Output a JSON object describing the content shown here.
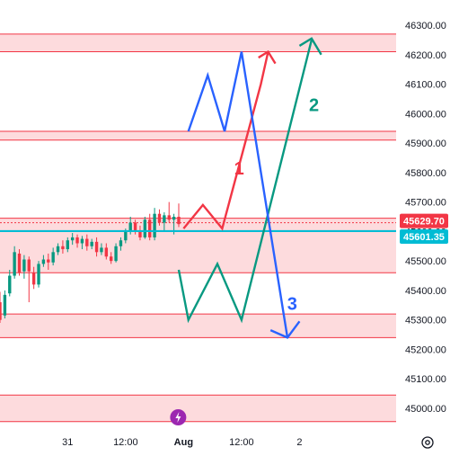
{
  "chart_data": {
    "type": "candlestick",
    "title": "",
    "price_axis": {
      "ticks": [
        45000,
        45100,
        45200,
        45300,
        45400,
        45500,
        45600,
        45700,
        45800,
        45900,
        46000,
        46100,
        46200,
        46300
      ],
      "tick_labels": [
        "45000.00",
        "45100.00",
        "45200.00",
        "45300.00",
        "45400.00",
        "45500.00",
        "45600.00",
        "45700.00",
        "45800.00",
        "45900.00",
        "46000.00",
        "46100.00",
        "46200.00",
        "46300.00"
      ],
      "range": [
        44960,
        46340
      ]
    },
    "time_axis": {
      "labels": [
        "31",
        "12:00",
        "Aug",
        "12:00",
        "2"
      ],
      "bold_label": "Aug",
      "range_hours": [
        -38,
        44
      ],
      "label_hours": [
        -24,
        -12,
        0,
        12,
        24
      ]
    },
    "price_tags": [
      {
        "label": "45629.70",
        "value": 45629.7,
        "color": "#f23645"
      },
      {
        "label": "45601.35",
        "value": 45601.35,
        "color": "#00bcd4"
      }
    ],
    "horizontal_line": {
      "value": 45601.35,
      "color": "#00bcd4"
    },
    "zones": [
      {
        "from": 46210,
        "to": 46270
      },
      {
        "from": 45910,
        "to": 45940
      },
      {
        "from": 45460,
        "to": 45645
      },
      {
        "from": 45240,
        "to": 45320
      },
      {
        "from": 44955,
        "to": 45045
      }
    ],
    "candles": [
      {
        "t": -38.0,
        "o": 45360,
        "h": 45395,
        "c": 45300,
        "l": 45290
      },
      {
        "t": -37.0,
        "o": 45315,
        "h": 45400,
        "c": 45385,
        "l": 45305
      },
      {
        "t": -36.0,
        "o": 45390,
        "h": 45470,
        "c": 45450,
        "l": 45380
      },
      {
        "t": -35.0,
        "o": 45450,
        "h": 45550,
        "c": 45530,
        "l": 45440
      },
      {
        "t": -34.0,
        "o": 45525,
        "h": 45540,
        "c": 45460,
        "l": 45450
      },
      {
        "t": -33.0,
        "o": 45465,
        "h": 45520,
        "c": 45505,
        "l": 45440
      },
      {
        "t": -32.0,
        "o": 45505,
        "h": 45515,
        "c": 45465,
        "l": 45360
      },
      {
        "t": -31.0,
        "o": 45460,
        "h": 45480,
        "c": 45420,
        "l": 45405
      },
      {
        "t": -30.0,
        "o": 45420,
        "h": 45500,
        "c": 45490,
        "l": 45410
      },
      {
        "t": -29.0,
        "o": 45490,
        "h": 45520,
        "c": 45505,
        "l": 45480
      },
      {
        "t": -28.0,
        "o": 45505,
        "h": 45525,
        "c": 45495,
        "l": 45470
      },
      {
        "t": -27.0,
        "o": 45495,
        "h": 45545,
        "c": 45530,
        "l": 45485
      },
      {
        "t": -26.0,
        "o": 45530,
        "h": 45560,
        "c": 45550,
        "l": 45520
      },
      {
        "t": -25.0,
        "o": 45550,
        "h": 45570,
        "c": 45540,
        "l": 45525
      },
      {
        "t": -24.0,
        "o": 45540,
        "h": 45580,
        "c": 45570,
        "l": 45530
      },
      {
        "t": -23.0,
        "o": 45570,
        "h": 45595,
        "c": 45580,
        "l": 45555
      },
      {
        "t": -22.0,
        "o": 45580,
        "h": 45590,
        "c": 45560,
        "l": 45545
      },
      {
        "t": -21.0,
        "o": 45560,
        "h": 45585,
        "c": 45575,
        "l": 45540
      },
      {
        "t": -20.0,
        "o": 45575,
        "h": 45590,
        "c": 45550,
        "l": 45535
      },
      {
        "t": -19.0,
        "o": 45550,
        "h": 45575,
        "c": 45565,
        "l": 45540
      },
      {
        "t": -18.0,
        "o": 45565,
        "h": 45580,
        "c": 45530,
        "l": 45515
      },
      {
        "t": -17.0,
        "o": 45530,
        "h": 45560,
        "c": 45545,
        "l": 45520
      },
      {
        "t": -16.0,
        "o": 45545,
        "h": 45560,
        "c": 45515,
        "l": 45505
      },
      {
        "t": -15.0,
        "o": 45515,
        "h": 45530,
        "c": 45500,
        "l": 45490
      },
      {
        "t": -14.0,
        "o": 45500,
        "h": 45560,
        "c": 45550,
        "l": 45495
      },
      {
        "t": -13.0,
        "o": 45550,
        "h": 45580,
        "c": 45570,
        "l": 45535
      },
      {
        "t": -12.0,
        "o": 45570,
        "h": 45610,
        "c": 45600,
        "l": 45560
      },
      {
        "t": -11.0,
        "o": 45600,
        "h": 45650,
        "c": 45630,
        "l": 45590
      },
      {
        "t": -10.0,
        "o": 45630,
        "h": 45640,
        "c": 45600,
        "l": 45590
      },
      {
        "t": -9.0,
        "o": 45600,
        "h": 45620,
        "c": 45580,
        "l": 45570
      },
      {
        "t": -8.0,
        "o": 45580,
        "h": 45650,
        "c": 45640,
        "l": 45575
      },
      {
        "t": -7.0,
        "o": 45640,
        "h": 45660,
        "c": 45580,
        "l": 45570
      },
      {
        "t": -6.0,
        "o": 45580,
        "h": 45680,
        "c": 45660,
        "l": 45570
      },
      {
        "t": -5.0,
        "o": 45660,
        "h": 45675,
        "c": 45630,
        "l": 45620
      },
      {
        "t": -4.0,
        "o": 45630,
        "h": 45665,
        "c": 45655,
        "l": 45600
      },
      {
        "t": -3.0,
        "o": 45655,
        "h": 45700,
        "c": 45640,
        "l": 45630
      },
      {
        "t": -2.0,
        "o": 45640,
        "h": 45660,
        "c": 45650,
        "l": 45590
      },
      {
        "t": -1.0,
        "o": 45650,
        "h": 45695,
        "c": 45625,
        "l": 45615
      }
    ],
    "scenarios": [
      {
        "label": "1",
        "color": "#f23645",
        "path": [
          [
            0.0,
            45610
          ],
          [
            4.0,
            45690
          ],
          [
            8.0,
            45610
          ],
          [
            16.0,
            46100
          ],
          [
            17.5,
            46210
          ]
        ],
        "arrowhead": [
          [
            15.5,
            46190
          ],
          [
            17.5,
            46210
          ],
          [
            19.0,
            46170
          ]
        ],
        "label_at": [
          11.5,
          45810
        ]
      },
      {
        "label": "2",
        "color": "#089981",
        "path": [
          [
            -1.0,
            45470
          ],
          [
            1.0,
            45300
          ],
          [
            7.0,
            45490
          ],
          [
            12.0,
            45300
          ],
          [
            26.5,
            46250
          ]
        ],
        "arrowhead": [
          [
            24.0,
            46230
          ],
          [
            26.5,
            46255
          ],
          [
            28.5,
            46200
          ]
        ],
        "label_at": [
          27.0,
          46025
        ]
      },
      {
        "label": "3",
        "color": "#2962ff",
        "path": [
          [
            1.0,
            45940
          ],
          [
            5.0,
            46130
          ],
          [
            8.5,
            45940
          ],
          [
            12.0,
            46210
          ],
          [
            21.5,
            45240
          ]
        ],
        "arrowhead": [
          [
            18.0,
            45265
          ],
          [
            21.5,
            45240
          ],
          [
            24.0,
            45295
          ]
        ],
        "label_at": [
          22.5,
          45350
        ]
      }
    ],
    "grid": false
  }
}
